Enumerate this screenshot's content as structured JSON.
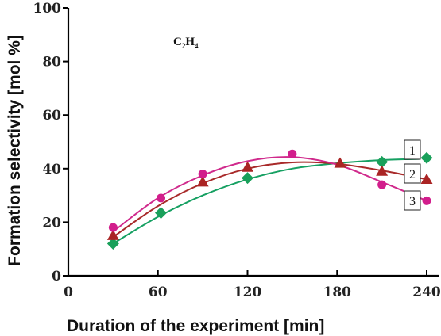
{
  "chart_data": {
    "type": "line",
    "ylabel": "Formation selectivity [mol %]",
    "xlabel": "Duration of the experiment [min]",
    "annotation": {
      "main": "C",
      "sub1": "2",
      "mid": "H",
      "sub2": "4"
    },
    "xlim": [
      0,
      240
    ],
    "ylim": [
      0,
      100
    ],
    "x_ticks": [
      "0",
      "60",
      "120",
      "180",
      "240"
    ],
    "y_ticks": [
      "0",
      "20",
      "40",
      "60",
      "80",
      "100"
    ],
    "grid": false,
    "series": [
      {
        "name": "1",
        "marker": "diamond",
        "color": "#19a05a",
        "line_color": "#16a062",
        "x": [
          30,
          62,
          120,
          210,
          240
        ],
        "y": [
          12,
          23.5,
          36.5,
          42.5,
          44
        ],
        "curve": [
          [
            30,
            12
          ],
          [
            60,
            22
          ],
          [
            90,
            30
          ],
          [
            120,
            36
          ],
          [
            150,
            40
          ],
          [
            180,
            42
          ],
          [
            210,
            43.2
          ],
          [
            235,
            43.6
          ]
        ]
      },
      {
        "name": "2",
        "marker": "triangle",
        "color": "#aa2424",
        "line_color": "#a82a2a",
        "x": [
          30,
          90,
          120,
          182,
          210,
          240
        ],
        "y": [
          15,
          35,
          40.5,
          42,
          39,
          36
        ],
        "curve": [
          [
            30,
            14.5
          ],
          [
            60,
            26
          ],
          [
            90,
            34.5
          ],
          [
            120,
            40
          ],
          [
            150,
            42.3
          ],
          [
            180,
            41.8
          ],
          [
            210,
            39.3
          ],
          [
            240,
            36
          ]
        ]
      },
      {
        "name": "3",
        "marker": "circle",
        "color": "#d21e8c",
        "line_color": "#d02a8c",
        "x": [
          30,
          62,
          90,
          150,
          210,
          240
        ],
        "y": [
          18,
          29,
          38,
          45.5,
          34,
          28
        ],
        "curve": [
          [
            30,
            16.5
          ],
          [
            60,
            29
          ],
          [
            90,
            37.5
          ],
          [
            120,
            42.8
          ],
          [
            150,
            44.3
          ],
          [
            180,
            41.5
          ],
          [
            210,
            35
          ],
          [
            240,
            28
          ]
        ]
      }
    ],
    "legend_labels": [
      "1",
      "2",
      "3"
    ]
  }
}
